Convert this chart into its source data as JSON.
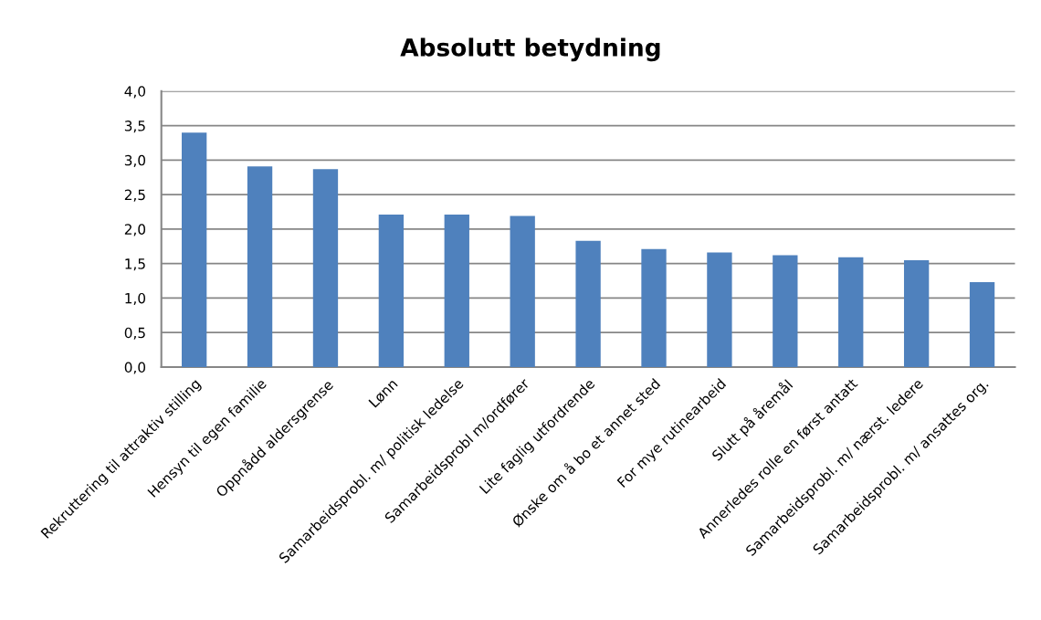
{
  "chart_data": {
    "type": "bar",
    "title": "Absolutt betydning",
    "categories": [
      "Rekruttering til attraktiv stilling",
      "Hensyn til egen familie",
      "Oppnådd aldersgrense",
      "Lønn",
      "Samarbeidsprobl. m/ politisk ledelse",
      "Samarbeidsprobl m/ordfører",
      "Lite faglig utfordrende",
      "Ønske om å bo et annet sted",
      "For mye rutinearbeid",
      "Slutt på åremål",
      "Annerledes rolle en først antatt",
      "Samarbeidsprobl. m/ nærst. ledere",
      "Samarbeidsprobl. m/ ansattes org."
    ],
    "values": [
      3.4,
      2.91,
      2.87,
      2.21,
      2.21,
      2.19,
      1.83,
      1.71,
      1.66,
      1.62,
      1.59,
      1.55,
      1.23
    ],
    "color": "#4f81bd",
    "ylim": [
      0,
      4
    ],
    "yticks": [
      {
        "value": 0,
        "label": "0,0"
      },
      {
        "value": 0.5,
        "label": "0,5"
      },
      {
        "value": 1,
        "label": "1,0"
      },
      {
        "value": 1.5,
        "label": "1,5"
      },
      {
        "value": 2,
        "label": "2,0"
      },
      {
        "value": 2.5,
        "label": "2,5"
      },
      {
        "value": 3,
        "label": "3,0"
      },
      {
        "value": 3.5,
        "label": "3,5"
      },
      {
        "value": 4,
        "label": "4,0"
      }
    ],
    "grid": "y"
  }
}
